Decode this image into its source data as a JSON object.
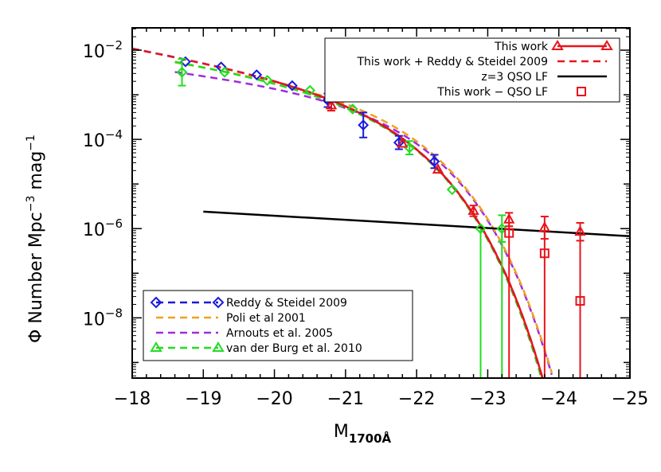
{
  "chart_data": {
    "type": "line",
    "title": "",
    "xlabel": "M",
    "xlabel_sub": "1700Å",
    "ylabel": "Φ Number Mpc",
    "ylabel_sup1": "−3",
    "ylabel_mid": " mag",
    "ylabel_sup2": "−1",
    "xlim": [
      -18,
      -25
    ],
    "ylim_log10": [
      -9.35,
      -1.5
    ],
    "y_scale": "log",
    "x_ticks": [
      -18,
      -19,
      -20,
      -21,
      -22,
      -23,
      -24,
      -25
    ],
    "x_tick_labels": [
      "−18",
      "−19",
      "−20",
      "−21",
      "−22",
      "−23",
      "−24",
      "−25"
    ],
    "y_ticks_exp": [
      -2,
      -4,
      -6,
      -8
    ],
    "y_tick_base": "10",
    "y_tick_exp_labels": [
      "−2",
      "−4",
      "−6",
      "−8"
    ],
    "legend_top_right": [
      {
        "label": "This work",
        "color": "#e8141c",
        "style": "solid-triangle"
      },
      {
        "label": "This work + Reddy & Steidel 2009",
        "color": "#e8141c",
        "style": "dashed"
      },
      {
        "label": "z=3 QSO LF",
        "color": "#000000",
        "style": "solid"
      },
      {
        "label": "This work − QSO LF",
        "color": "#e8141c",
        "style": "square"
      }
    ],
    "legend_bottom_left": [
      {
        "label": "Reddy & Steidel 2009",
        "color": "#1a1adc",
        "style": "dashed-diamond"
      },
      {
        "label": "Poli et al 2001",
        "color": "#f0a020",
        "style": "dashed"
      },
      {
        "label": "Arnouts et al. 2005",
        "color": "#a02ce0",
        "style": "dashed"
      },
      {
        "label": "van der Burg et al. 2010",
        "color": "#22dd22",
        "style": "dashed-triangle"
      }
    ],
    "colors": {
      "this_work": "#e8141c",
      "reddy": "#1a1adc",
      "poli": "#f0a020",
      "arnouts": "#a02ce0",
      "vdb": "#22dd22",
      "qso": "#000000"
    },
    "curve_params": {
      "this_work": {
        "phi_star": 0.0017,
        "m_star": -20.97,
        "alpha": -1.73
      },
      "this_work_reddy": {
        "phi_star": 0.0017,
        "m_star": -20.97,
        "alpha": -1.73
      },
      "reddy": {
        "phi_star": 0.00171,
        "m_star": -20.97,
        "alpha": -1.73
      },
      "poli": {
        "phi_star": 0.0016,
        "m_star": -21.1,
        "alpha": -1.6
      },
      "arnouts": {
        "phi_star": 0.00133,
        "m_star": -21.08,
        "alpha": -1.47
      },
      "vdb": {
        "phi_star": 0.00165,
        "m_star": -20.94,
        "alpha": -1.65
      }
    },
    "qso_line": {
      "x": [
        -19,
        -25
      ],
      "log10_y": [
        -5.62,
        -6.17
      ]
    },
    "series_points": {
      "reddy": [
        {
          "x": -18.75,
          "y": 0.0055
        },
        {
          "x": -19.25,
          "y": 0.0042
        },
        {
          "x": -19.75,
          "y": 0.0028
        },
        {
          "x": -20.25,
          "y": 0.0016
        },
        {
          "x": -20.75,
          "y": 0.00075,
          "err_dex": 0.15
        },
        {
          "x": -21.25,
          "y": 0.00021,
          "err_dex": 0.28
        },
        {
          "x": -21.75,
          "y": 8.5e-05,
          "err_dex": 0.15
        },
        {
          "x": -22.25,
          "y": 3.2e-05,
          "err_dex": 0.15
        }
      ],
      "vdb": [
        {
          "x": -18.7,
          "y": 0.0032,
          "err_dex": 0.3
        },
        {
          "x": -19.3,
          "y": 0.0032
        },
        {
          "x": -19.9,
          "y": 0.0021
        },
        {
          "x": -20.5,
          "y": 0.00125
        },
        {
          "x": -21.1,
          "y": 0.00048
        },
        {
          "x": -21.9,
          "y": 6.5e-05,
          "err_dex": 0.15
        },
        {
          "x": -22.5,
          "y": 7.5e-06
        },
        {
          "x": -22.9,
          "y": 1e-06
        },
        {
          "x": -23.2,
          "y": 1e-06,
          "err_dex": 0.3
        }
      ],
      "this_work": [
        {
          "x": -20.8,
          "y": 0.00058,
          "err_dex": 0.12
        },
        {
          "x": -21.8,
          "y": 8e-05
        },
        {
          "x": -22.3,
          "y": 2.1e-05
        },
        {
          "x": -22.8,
          "y": 2.5e-06,
          "err_dex": 0.12
        },
        {
          "x": -23.3,
          "y": 1.6e-06,
          "err_dex": 0.15
        },
        {
          "x": -23.8,
          "y": 1.05e-06,
          "err_dex": 0.25
        },
        {
          "x": -24.3,
          "y": 8.5e-07,
          "err_dex": 0.2
        }
      ],
      "this_work_minus_qso": [
        {
          "x": -23.3,
          "y": 8e-07
        },
        {
          "x": -23.8,
          "y": 2.8e-07
        },
        {
          "x": -24.3,
          "y": 2.4e-08
        }
      ]
    }
  }
}
